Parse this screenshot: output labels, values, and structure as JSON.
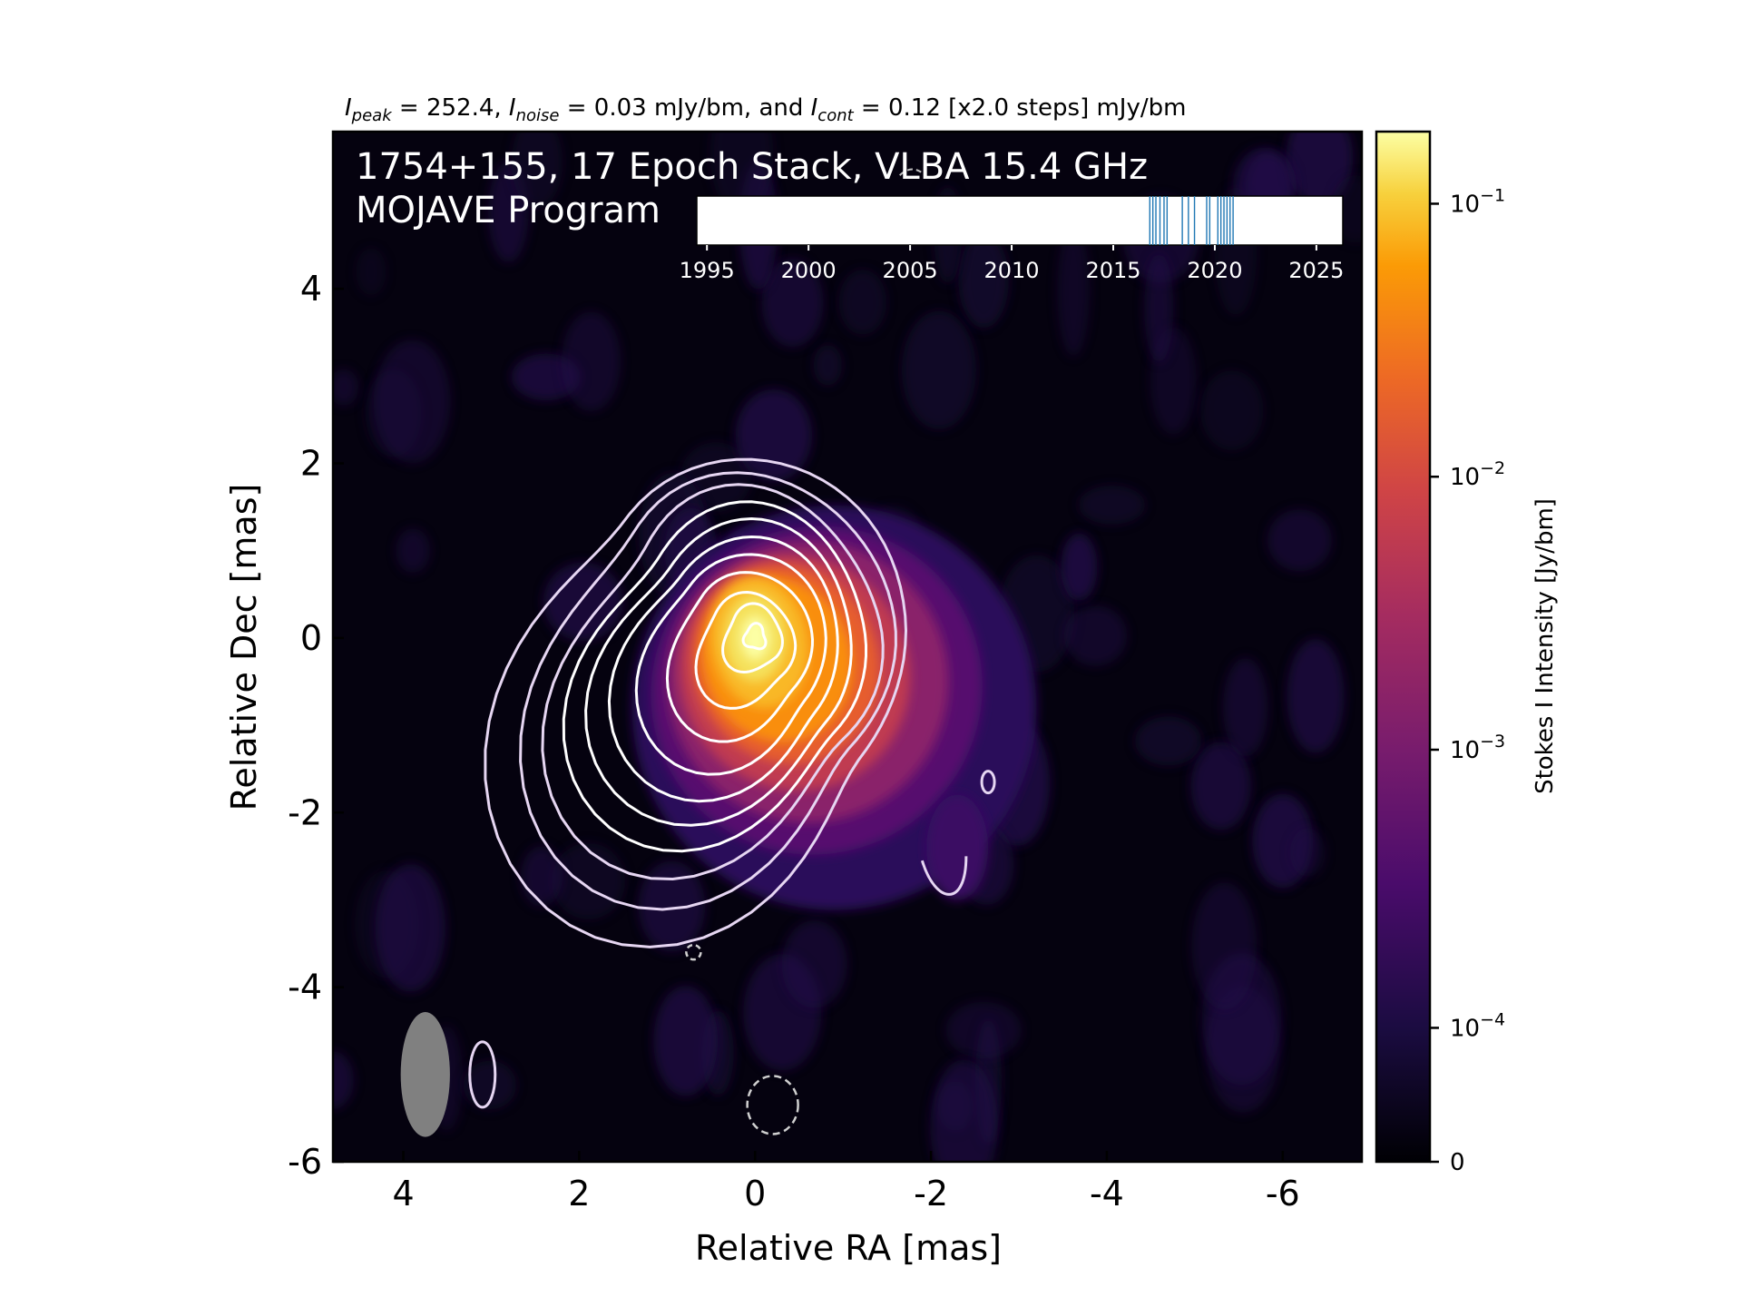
{
  "chart_data": {
    "type": "heatmap",
    "top_caption": {
      "peak_sym": "I",
      "peak_sub": "peak",
      "peak_val": " = 252.4, ",
      "noise_sym": "I",
      "noise_sub": "noise",
      "noise_val": " = 0.03 mJy/bm, and ",
      "cont_sym": "I",
      "cont_sub": "cont",
      "cont_val": " = 0.12 [x2.0 steps] mJy/bm"
    },
    "title_line1": "1754+155, 17 Epoch Stack, VLBA 15.4 GHz",
    "title_line2": "MOJAVE Program",
    "xlabel": "Relative RA [mas]",
    "ylabel": "Relative Dec [mas]",
    "xlim": [
      4.8,
      -6.9
    ],
    "ylim": [
      -6,
      5.8
    ],
    "xticks": [
      4,
      2,
      0,
      -2,
      -4,
      -6
    ],
    "xtick_labels": [
      "4",
      "2",
      "0",
      "-2",
      "-4",
      "-6"
    ],
    "yticks": [
      4,
      2,
      0,
      -2,
      -4,
      -6
    ],
    "ytick_labels": [
      "4",
      "2",
      "0",
      "-2",
      "-4",
      "-6"
    ],
    "colorbar": {
      "label": "Stokes I Intensity [Jy/bm]",
      "scale": "symlog",
      "colormap": "inferno",
      "ticks": [
        {
          "base": "0",
          "exp": ""
        },
        {
          "base": "10",
          "exp": "−4"
        },
        {
          "base": "10",
          "exp": "−3"
        },
        {
          "base": "10",
          "exp": "−2"
        },
        {
          "base": "10",
          "exp": "−1"
        }
      ],
      "max": 0.2524
    },
    "source": {
      "peak_jy": 0.2524,
      "core": {
        "ra": 0.0,
        "dec": 0.0
      },
      "jet_direction": "south-west",
      "jet_components": [
        {
          "ra": -1.0,
          "dec": -0.7,
          "flux_jy": 0.05
        },
        {
          "ra": -2.0,
          "dec": -1.7,
          "flux_jy": 0.0015
        },
        {
          "ra": -2.3,
          "dec": -2.6,
          "flux_jy": 0.0006
        }
      ]
    },
    "contour_levels_jy": [
      0.00012,
      0.00024,
      0.00048,
      0.00096,
      0.00192,
      0.00384,
      0.00768,
      0.01536,
      0.03072,
      0.06144,
      0.12288
    ],
    "beam": {
      "ra": 3.75,
      "dec": -5.0,
      "bmaj_mas": 1.42,
      "bmin_mas": 0.56,
      "pa_deg": 0
    },
    "epoch_timeline": {
      "xlim": [
        1994.5,
        2026.3
      ],
      "ticks": [
        1995,
        2000,
        2005,
        2010,
        2015,
        2020,
        2025
      ],
      "tick_labels": [
        "1995",
        "2000",
        "2005",
        "2010",
        "2015",
        "2020",
        "2025"
      ],
      "epochs": [
        2016.8,
        2016.95,
        2017.1,
        2017.3,
        2017.5,
        2017.65,
        2018.4,
        2018.7,
        2019.0,
        2019.6,
        2019.75,
        2020.15,
        2020.3,
        2020.45,
        2020.6,
        2020.75,
        2020.9
      ],
      "line_color": "#1f77b4"
    }
  }
}
